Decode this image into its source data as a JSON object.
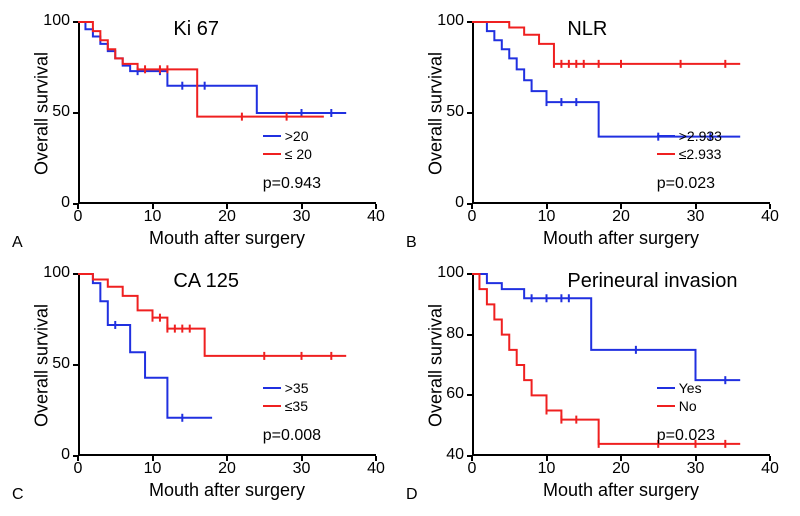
{
  "layout": {
    "cols": 2,
    "rows": 2,
    "panel_labels": [
      "A",
      "B",
      "C",
      "D"
    ],
    "label_fontsize": 16
  },
  "common": {
    "ylabel": "Overall survival",
    "xlabel": "Mouth after surgery",
    "ylabel_fontsize": 18,
    "xlabel_fontsize": 18,
    "title_fontsize": 20,
    "tick_fontsize": 16,
    "legend_fontsize": 14,
    "pvalue_fontsize": 16,
    "line_width": 2,
    "background": "#ffffff",
    "axis_color": "#000000",
    "colors": {
      "blue": "#2030e0",
      "red": "#ef2020"
    }
  },
  "panels": [
    {
      "id": "A",
      "title": "Ki 67",
      "xlim": [
        0,
        40
      ],
      "xticks": [
        0,
        10,
        20,
        30,
        40
      ],
      "ylim": [
        0,
        100
      ],
      "yticks": [
        0,
        50,
        100
      ],
      "pvalue": "p=0.943",
      "legend": [
        {
          "label": ">20",
          "color": "#2030e0"
        },
        {
          "label": "≤ 20",
          "color": "#ef2020"
        }
      ],
      "series": [
        {
          "color": "#2030e0",
          "points": [
            [
              0,
              100
            ],
            [
              1,
              96
            ],
            [
              2,
              92
            ],
            [
              3,
              88
            ],
            [
              4,
              84
            ],
            [
              5,
              80
            ],
            [
              6,
              76
            ],
            [
              7,
              73
            ],
            [
              8,
              73
            ],
            [
              10,
              73
            ],
            [
              11,
              73
            ],
            [
              12,
              65
            ],
            [
              17,
              65
            ],
            [
              24,
              50
            ],
            [
              30,
              50
            ],
            [
              36,
              50
            ]
          ],
          "censor": [
            [
              8,
              73
            ],
            [
              11,
              73
            ],
            [
              14,
              65
            ],
            [
              17,
              65
            ],
            [
              30,
              50
            ],
            [
              34,
              50
            ]
          ]
        },
        {
          "color": "#ef2020",
          "points": [
            [
              0,
              100
            ],
            [
              2,
              95
            ],
            [
              3,
              90
            ],
            [
              4,
              85
            ],
            [
              5,
              80
            ],
            [
              6,
              77
            ],
            [
              8,
              74
            ],
            [
              10,
              74
            ],
            [
              12,
              74
            ],
            [
              16,
              48
            ],
            [
              22,
              48
            ],
            [
              33,
              48
            ]
          ],
          "censor": [
            [
              9,
              74
            ],
            [
              11,
              74
            ],
            [
              12,
              74
            ],
            [
              22,
              48
            ],
            [
              28,
              48
            ]
          ]
        }
      ]
    },
    {
      "id": "B",
      "title": "NLR",
      "xlim": [
        0,
        40
      ],
      "xticks": [
        0,
        10,
        20,
        30,
        40
      ],
      "ylim": [
        0,
        100
      ],
      "yticks": [
        0,
        50,
        100
      ],
      "pvalue": "p=0.023",
      "legend": [
        {
          "label": ">2.933",
          "color": "#2030e0"
        },
        {
          "label": "≤2.933",
          "color": "#ef2020"
        }
      ],
      "series": [
        {
          "color": "#2030e0",
          "points": [
            [
              0,
              100
            ],
            [
              2,
              95
            ],
            [
              3,
              90
            ],
            [
              4,
              85
            ],
            [
              5,
              80
            ],
            [
              6,
              74
            ],
            [
              7,
              68
            ],
            [
              8,
              62
            ],
            [
              10,
              56
            ],
            [
              12,
              56
            ],
            [
              14,
              56
            ],
            [
              17,
              37
            ],
            [
              25,
              37
            ],
            [
              36,
              37
            ]
          ],
          "censor": [
            [
              10,
              56
            ],
            [
              12,
              56
            ],
            [
              14,
              56
            ],
            [
              25,
              37
            ],
            [
              32,
              37
            ]
          ]
        },
        {
          "color": "#ef2020",
          "points": [
            [
              0,
              100
            ],
            [
              3,
              100
            ],
            [
              5,
              97
            ],
            [
              7,
              93
            ],
            [
              9,
              88
            ],
            [
              11,
              77
            ],
            [
              14,
              77
            ],
            [
              20,
              77
            ],
            [
              36,
              77
            ]
          ],
          "censor": [
            [
              11,
              77
            ],
            [
              12,
              77
            ],
            [
              13,
              77
            ],
            [
              14,
              77
            ],
            [
              15,
              77
            ],
            [
              17,
              77
            ],
            [
              20,
              77
            ],
            [
              28,
              77
            ],
            [
              34,
              77
            ]
          ]
        }
      ]
    },
    {
      "id": "C",
      "title": "CA 125",
      "xlim": [
        0,
        40
      ],
      "xticks": [
        0,
        10,
        20,
        30,
        40
      ],
      "ylim": [
        0,
        100
      ],
      "yticks": [
        0,
        50,
        100
      ],
      "pvalue": "p=0.008",
      "legend": [
        {
          "label": ">35",
          "color": "#2030e0"
        },
        {
          "label": "≤35",
          "color": "#ef2020"
        }
      ],
      "series": [
        {
          "color": "#2030e0",
          "points": [
            [
              0,
              100
            ],
            [
              2,
              95
            ],
            [
              3,
              85
            ],
            [
              4,
              72
            ],
            [
              5,
              72
            ],
            [
              7,
              57
            ],
            [
              9,
              43
            ],
            [
              12,
              21
            ],
            [
              18,
              21
            ]
          ],
          "censor": [
            [
              5,
              72
            ],
            [
              14,
              21
            ]
          ]
        },
        {
          "color": "#ef2020",
          "points": [
            [
              0,
              100
            ],
            [
              2,
              97
            ],
            [
              4,
              93
            ],
            [
              6,
              88
            ],
            [
              8,
              80
            ],
            [
              10,
              76
            ],
            [
              12,
              70
            ],
            [
              15,
              70
            ],
            [
              17,
              55
            ],
            [
              25,
              55
            ],
            [
              36,
              55
            ]
          ],
          "censor": [
            [
              10,
              76
            ],
            [
              11,
              76
            ],
            [
              12,
              70
            ],
            [
              13,
              70
            ],
            [
              14,
              70
            ],
            [
              15,
              70
            ],
            [
              25,
              55
            ],
            [
              30,
              55
            ],
            [
              34,
              55
            ]
          ]
        }
      ]
    },
    {
      "id": "D",
      "title": "Perineural invasion",
      "xlim": [
        0,
        40
      ],
      "xticks": [
        0,
        10,
        20,
        30,
        40
      ],
      "ylim": [
        40,
        100
      ],
      "yticks": [
        40,
        60,
        80,
        100
      ],
      "pvalue": "p=0.023",
      "legend": [
        {
          "label": "Yes",
          "color": "#2030e0"
        },
        {
          "label": "No",
          "color": "#ef2020"
        }
      ],
      "series": [
        {
          "color": "#2030e0",
          "points": [
            [
              0,
              100
            ],
            [
              2,
              97
            ],
            [
              4,
              95
            ],
            [
              7,
              92
            ],
            [
              12,
              92
            ],
            [
              16,
              75
            ],
            [
              22,
              75
            ],
            [
              30,
              65
            ],
            [
              36,
              65
            ]
          ],
          "censor": [
            [
              8,
              92
            ],
            [
              10,
              92
            ],
            [
              12,
              92
            ],
            [
              13,
              92
            ],
            [
              22,
              75
            ],
            [
              34,
              65
            ]
          ]
        },
        {
          "color": "#ef2020",
          "points": [
            [
              0,
              100
            ],
            [
              1,
              95
            ],
            [
              2,
              90
            ],
            [
              3,
              85
            ],
            [
              4,
              80
            ],
            [
              5,
              75
            ],
            [
              6,
              70
            ],
            [
              7,
              65
            ],
            [
              8,
              60
            ],
            [
              10,
              55
            ],
            [
              12,
              52
            ],
            [
              17,
              44
            ],
            [
              25,
              44
            ],
            [
              36,
              44
            ]
          ],
          "censor": [
            [
              10,
              55
            ],
            [
              12,
              52
            ],
            [
              14,
              52
            ],
            [
              17,
              44
            ],
            [
              25,
              44
            ],
            [
              30,
              44
            ],
            [
              34,
              44
            ]
          ]
        }
      ]
    }
  ]
}
